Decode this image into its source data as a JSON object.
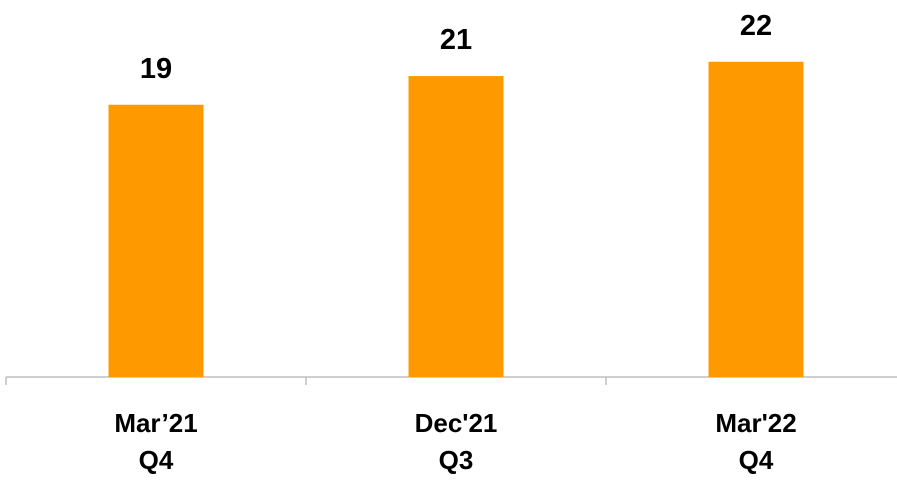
{
  "chart_data": {
    "type": "bar",
    "categories": [
      "Mar’21\nQ4",
      "Dec'21\nQ3",
      "Mar'22\nQ4"
    ],
    "values": [
      19,
      21,
      22
    ],
    "color": "#ff9900",
    "grid": false
  }
}
